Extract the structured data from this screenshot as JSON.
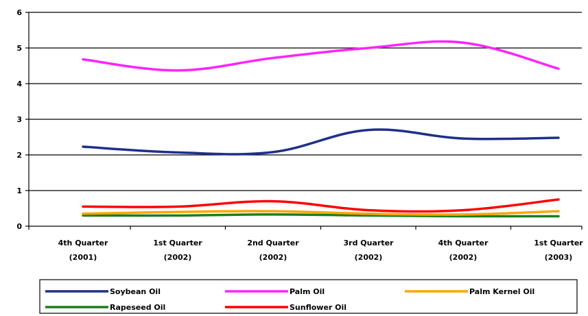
{
  "chart_data": {
    "type": "line",
    "categories": [
      [
        "4th Quarter",
        "(2001)"
      ],
      [
        "1st Quarter",
        "(2002)"
      ],
      [
        "2nd Quarter",
        "(2002)"
      ],
      [
        "3rd Quarter",
        "(2002)"
      ],
      [
        "4th Quarter",
        "(2002)"
      ],
      [
        "1st Quarter",
        "(2003)"
      ]
    ],
    "ylim": [
      0,
      6
    ],
    "yticks": [
      "0",
      "1",
      "2",
      "3",
      "4",
      "5",
      "6"
    ],
    "grid": true,
    "legend_position": "bottom",
    "series": [
      {
        "name": "Soybean Oil",
        "color": "#1f2f8c",
        "values": [
          2.23,
          2.07,
          2.08,
          2.7,
          2.46,
          2.48
        ]
      },
      {
        "name": "Palm Oil",
        "color": "#ff22ff",
        "values": [
          4.68,
          4.37,
          4.72,
          5.0,
          5.15,
          4.42
        ]
      },
      {
        "name": "Palm Kernel Oil",
        "color": "#ffa500",
        "values": [
          0.35,
          0.4,
          0.42,
          0.35,
          0.33,
          0.42
        ]
      },
      {
        "name": "Rapeseed Oil",
        "color": "#1a7f1a",
        "values": [
          0.3,
          0.3,
          0.33,
          0.3,
          0.28,
          0.28
        ]
      },
      {
        "name": "Sunflower Oil",
        "color": "#ff0000",
        "values": [
          0.55,
          0.55,
          0.7,
          0.45,
          0.45,
          0.75
        ]
      }
    ]
  }
}
